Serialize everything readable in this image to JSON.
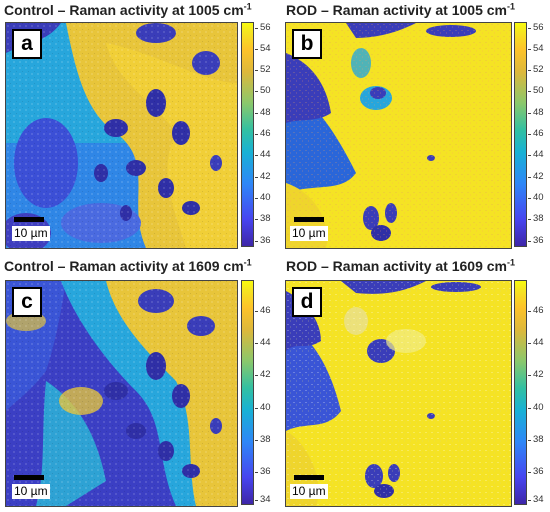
{
  "panels": [
    {
      "title_main": "Control – Raman activity at 1005 cm",
      "title_sup": "-1",
      "letter": "a",
      "scale_label": "10 µm",
      "colorbar_ticks": [
        "56",
        "54",
        "52",
        "50",
        "48",
        "46",
        "44",
        "42",
        "40",
        "38",
        "36"
      ],
      "dominant_colors": [
        "#4a55e6",
        "#27a6dc",
        "#e8c53a"
      ]
    },
    {
      "title_main": "ROD – Raman activity at 1005 cm",
      "title_sup": "-1",
      "letter": "b",
      "scale_label": "10 µm",
      "colorbar_ticks": [
        "56",
        "54",
        "52",
        "50",
        "48",
        "46",
        "44",
        "42",
        "40",
        "38",
        "36"
      ],
      "dominant_colors": [
        "#f5e324",
        "#e8c53a",
        "#3d40c9"
      ]
    },
    {
      "title_main": "Control – Raman activity at 1609 cm",
      "title_sup": "-1",
      "letter": "c",
      "scale_label": "10 µm",
      "colorbar_ticks": [
        "46",
        "44",
        "42",
        "40",
        "38",
        "36",
        "34"
      ],
      "dominant_colors": [
        "#3b3fc4",
        "#27a6dc",
        "#e8c53a"
      ]
    },
    {
      "title_main": "ROD – Raman activity at 1609 cm",
      "title_sup": "-1",
      "letter": "d",
      "scale_label": "10 µm",
      "colorbar_ticks": [
        "46",
        "44",
        "42",
        "40",
        "38",
        "36",
        "34"
      ],
      "dominant_colors": [
        "#f5e324",
        "#f0e040",
        "#3d40c9"
      ]
    }
  ],
  "colormap": [
    "#3e26a8",
    "#4745f0",
    "#2e87f7",
    "#18b1d5",
    "#32c0a2",
    "#8ac86c",
    "#ddb83b",
    "#fdc32a",
    "#f9fb0e"
  ]
}
